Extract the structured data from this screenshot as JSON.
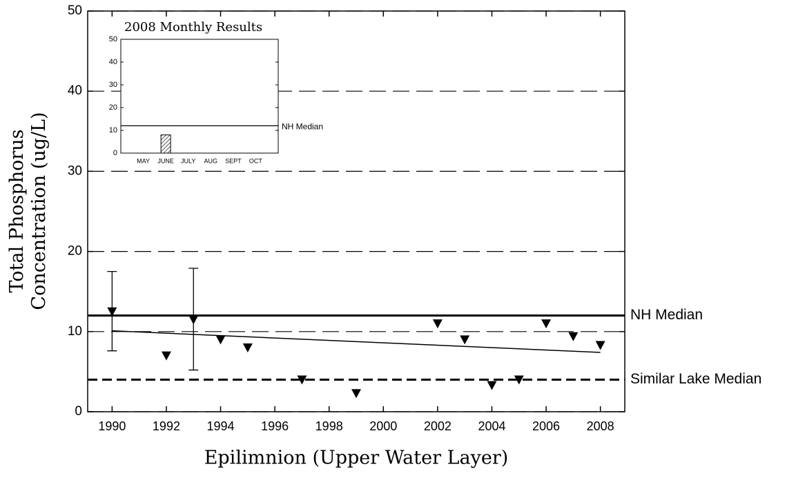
{
  "chart_data": [
    {
      "type": "scatter",
      "y_label": [
        "Total Phosphorus",
        "Concentration (ug/L)"
      ],
      "x_label": "Epilimnion (Upper Water Layer)",
      "x": [
        1990,
        1992,
        1993,
        1994,
        1995,
        1997,
        1999,
        2002,
        2003,
        2004,
        2005,
        2006,
        2007,
        2008
      ],
      "values": [
        12.5,
        7,
        11.5,
        9,
        8,
        4,
        2.3,
        11,
        9,
        3.3,
        4,
        11,
        9.4,
        8.3
      ],
      "error_bars": [
        {
          "x": 1990,
          "low": 7.6,
          "high": 17.5
        },
        {
          "x": 1993,
          "low": 5.2,
          "high": 17.9
        }
      ],
      "trend": {
        "x": [
          1990,
          2008
        ],
        "values": [
          10.1,
          7.4
        ]
      },
      "reference_lines": [
        {
          "label": "NH Median",
          "value": 12,
          "style": "solid"
        },
        {
          "label": "Similar Lake Median",
          "value": 4,
          "style": "dashed"
        }
      ],
      "xlim": [
        1989.1,
        2008.9
      ],
      "xticks": [
        1990,
        1992,
        1994,
        1996,
        1998,
        2000,
        2002,
        2004,
        2006,
        2008
      ],
      "ylim": [
        0,
        50
      ],
      "yticks": [
        0,
        10,
        20,
        30,
        40,
        50
      ],
      "grid": true,
      "color": "#000000"
    },
    {
      "type": "bar",
      "title": "2008 Monthly Results",
      "categories": [
        "MAY",
        "JUNE",
        "JULY",
        "AUG",
        "SEPT",
        "OCT"
      ],
      "values": [
        null,
        8,
        null,
        null,
        null,
        null
      ],
      "reference_lines": [
        {
          "label": "NH Median",
          "value": 12,
          "style": "solid"
        }
      ],
      "ylim": [
        0,
        50
      ],
      "yticks": [
        0,
        10,
        20,
        30,
        40,
        50
      ],
      "color": "#aaaaaa"
    }
  ]
}
